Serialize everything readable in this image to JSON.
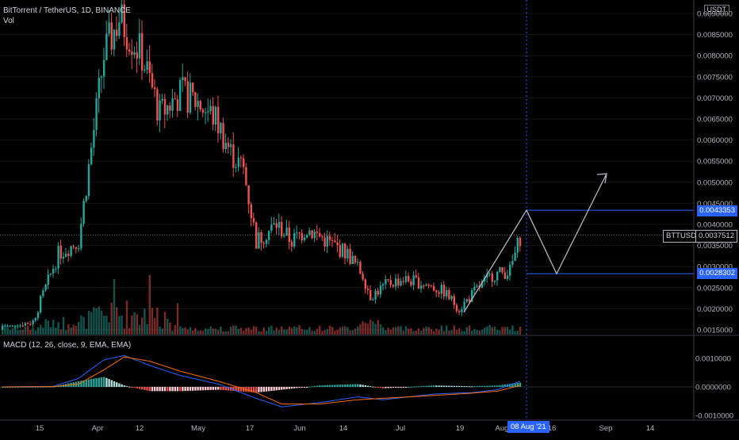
{
  "header": {
    "symbol_line": "BitTorrent / TetherUS, 1D, BINANCE",
    "volume_label": "Vol",
    "macd_label": "MACD (12, 26, close, 9, EMA, EMA)",
    "currency_badge": "USDT"
  },
  "colors": {
    "up": "#26a69a",
    "down": "#ef5350",
    "macd_line": "#2962ff",
    "signal_line": "#ff6d00",
    "hist_up_strong": "#26a69a",
    "hist_up_weak": "#b2dfdb",
    "hist_down_strong": "#ef5350",
    "hist_down_weak": "#ffcdd2",
    "horizontal_levels": "#2962ff",
    "projection": "#b2b5be"
  },
  "price_axis": {
    "ticks": [
      "0.0090000",
      "0.0085000",
      "0.0080000",
      "0.0075000",
      "0.0070000",
      "0.0065000",
      "0.0060000",
      "0.0055000",
      "0.0050000",
      "0.0045000",
      "0.0040000",
      "0.0035000",
      "0.0030000",
      "0.0025000",
      "0.0020000",
      "0.0015000"
    ],
    "current_ticker": "BTTUSDT",
    "current_price": "0.0037512",
    "level_high": "0.0043353",
    "level_low": "0.0028302"
  },
  "macd_axis": {
    "ticks": [
      "0.0010000",
      "0.0000000",
      "-0.0010000"
    ]
  },
  "time_axis": {
    "labels": [
      "15",
      "Apr",
      "12",
      "May",
      "17",
      "Jun",
      "14",
      "Jul",
      "19",
      "Aug",
      "16",
      "Sep",
      "14"
    ],
    "crosshair_date": "08 Aug '21"
  },
  "chart_data": {
    "type": "candlestick",
    "title": "BitTorrent / TetherUS, 1D, BINANCE",
    "price_range": [
      0.0013,
      0.0093
    ],
    "keypoints": [
      {
        "idx": 0,
        "price": 0.0015
      },
      {
        "idx": 12,
        "price": 0.0017
      },
      {
        "idx": 22,
        "price": 0.0033
      },
      {
        "idx": 30,
        "price": 0.0036
      },
      {
        "idx": 40,
        "price": 0.008
      },
      {
        "idx": 46,
        "price": 0.0089
      },
      {
        "idx": 55,
        "price": 0.008
      },
      {
        "idx": 62,
        "price": 0.0066
      },
      {
        "idx": 70,
        "price": 0.0071
      },
      {
        "idx": 77,
        "price": 0.0069
      },
      {
        "idx": 84,
        "price": 0.0065
      },
      {
        "idx": 90,
        "price": 0.0057
      },
      {
        "idx": 95,
        "price": 0.0053
      },
      {
        "idx": 100,
        "price": 0.0036
      },
      {
        "idx": 108,
        "price": 0.004
      },
      {
        "idx": 114,
        "price": 0.0036
      },
      {
        "idx": 120,
        "price": 0.0039
      },
      {
        "idx": 128,
        "price": 0.0036
      },
      {
        "idx": 136,
        "price": 0.0033
      },
      {
        "idx": 142,
        "price": 0.0028
      },
      {
        "idx": 145,
        "price": 0.0023
      },
      {
        "idx": 152,
        "price": 0.0026
      },
      {
        "idx": 158,
        "price": 0.0027
      },
      {
        "idx": 166,
        "price": 0.0026
      },
      {
        "idx": 174,
        "price": 0.0024
      },
      {
        "idx": 180,
        "price": 0.002
      },
      {
        "idx": 186,
        "price": 0.0024
      },
      {
        "idx": 193,
        "price": 0.0028
      },
      {
        "idx": 200,
        "price": 0.0029
      },
      {
        "idx": 204,
        "price": 0.0037
      }
    ],
    "macd_keypoints": [
      {
        "idx": 0,
        "macd": 0.0,
        "signal": 0.0
      },
      {
        "idx": 20,
        "macd": 2e-05,
        "signal": 1e-05
      },
      {
        "idx": 30,
        "macd": 0.0003,
        "signal": 0.0001
      },
      {
        "idx": 40,
        "macd": 0.00095,
        "signal": 0.0006
      },
      {
        "idx": 48,
        "macd": 0.0011,
        "signal": 0.00105
      },
      {
        "idx": 58,
        "macd": 0.00075,
        "signal": 0.0009
      },
      {
        "idx": 70,
        "macd": 0.0004,
        "signal": 0.00055
      },
      {
        "idx": 85,
        "macd": 0.0001,
        "signal": 0.0002
      },
      {
        "idx": 100,
        "macd": -0.0004,
        "signal": -0.0002
      },
      {
        "idx": 110,
        "macd": -0.0007,
        "signal": -0.0006
      },
      {
        "idx": 125,
        "macd": -0.00055,
        "signal": -0.0006
      },
      {
        "idx": 140,
        "macd": -0.00035,
        "signal": -0.00045
      },
      {
        "idx": 150,
        "macd": -0.00045,
        "signal": -0.0004
      },
      {
        "idx": 170,
        "macd": -0.00025,
        "signal": -0.0003
      },
      {
        "idx": 185,
        "macd": -0.0002,
        "signal": -0.00022
      },
      {
        "idx": 195,
        "macd": -0.0001,
        "signal": -0.00015
      },
      {
        "idx": 204,
        "macd": 0.0002,
        "signal": 5e-05
      }
    ],
    "macd_range": [
      -0.0011,
      0.0017
    ],
    "projection_path": [
      {
        "date": "08 Aug '21",
        "price": 0.0043353
      },
      {
        "date": "~15 Aug '21",
        "price": 0.0028302
      },
      {
        "date": "~1 Sep '21",
        "price": 0.0052
      }
    ],
    "levels": [
      0.0043353,
      0.0028302
    ]
  }
}
